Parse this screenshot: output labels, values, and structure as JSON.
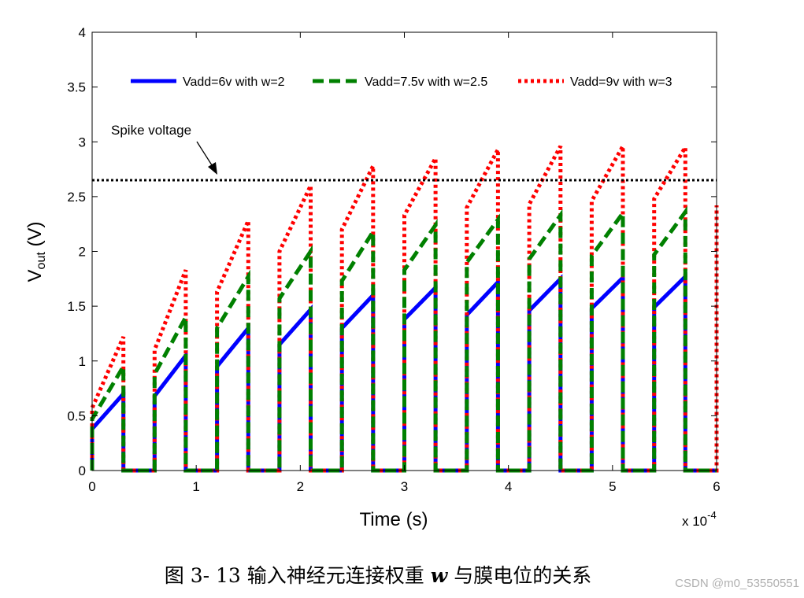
{
  "chart_data": {
    "type": "line",
    "title": "",
    "xlabel": "Time (s)",
    "ylabel_main": "V",
    "ylabel_sub": "out",
    "ylabel_unit": " (V)",
    "x_multiplier": "x 10",
    "x_multiplier_exp": "-4",
    "xlim": [
      0,
      6
    ],
    "ylim": [
      0,
      4
    ],
    "x_ticks": [
      0,
      1,
      2,
      3,
      4,
      5,
      6
    ],
    "y_ticks": [
      0,
      0.5,
      1,
      1.5,
      2,
      2.5,
      3,
      3.5,
      4
    ],
    "legend_position": "top",
    "spike": {
      "label": "Spike voltage",
      "value": 2.65,
      "style": "dotted",
      "color": "#000000"
    },
    "pulse_period": 0.6,
    "pulse_on_duration": 0.3,
    "series": [
      {
        "name": "Vadd=6v with w=2",
        "color": "#0000ff",
        "style": "solid",
        "start_values": [
          0.38,
          0.68,
          0.95,
          1.15,
          1.3,
          1.38,
          1.42,
          1.46,
          1.48,
          1.49
        ],
        "end_values": [
          0.7,
          1.05,
          1.3,
          1.47,
          1.6,
          1.67,
          1.72,
          1.75,
          1.76,
          1.77
        ]
      },
      {
        "name": "Vadd=7.5v with w=2.5",
        "color": "#008000",
        "style": "dashed",
        "start_values": [
          0.47,
          0.88,
          1.3,
          1.57,
          1.73,
          1.83,
          1.9,
          1.93,
          1.96,
          1.97
        ],
        "end_values": [
          0.95,
          1.4,
          1.77,
          2.0,
          2.18,
          2.24,
          2.29,
          2.33,
          2.35,
          2.36
        ]
      },
      {
        "name": "Vadd=9v with w=3",
        "color": "#ff0000",
        "style": "dotted",
        "start_values": [
          0.57,
          1.1,
          1.63,
          2.0,
          2.2,
          2.33,
          2.4,
          2.43,
          2.46,
          2.48
        ],
        "end_values": [
          1.22,
          1.83,
          2.28,
          2.6,
          2.78,
          2.85,
          2.93,
          2.96,
          2.96,
          2.95
        ],
        "final_start_value": 2.42
      }
    ]
  },
  "caption": {
    "prefix": "图 3- 13  输入神经元连接权重 ",
    "symbol": "w",
    "suffix": " 与膜电位的关系"
  },
  "watermark": "CSDN @m0_53550551"
}
